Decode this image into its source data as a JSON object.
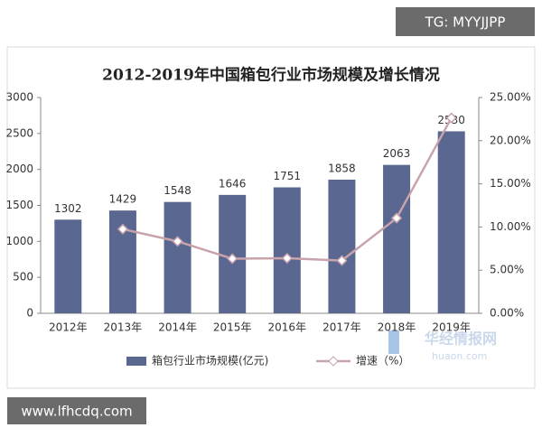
{
  "chart_data": {
    "type": "bar_line",
    "title": "2012-2019年中国箱包行业市场规模及增长情况",
    "categories": [
      "2012年",
      "2013年",
      "2014年",
      "2015年",
      "2016年",
      "2017年",
      "2018年",
      "2019年"
    ],
    "series": [
      {
        "name": "箱包行业市场规模(亿元)",
        "type": "bar",
        "color": "#5a6891",
        "values": [
          1302,
          1429,
          1548,
          1646,
          1751,
          1858,
          2063,
          2530
        ]
      },
      {
        "name": "增速（%）",
        "type": "line",
        "axis": "y2",
        "color": "#c9a3ac",
        "values": [
          null,
          9.75,
          8.33,
          6.33,
          6.38,
          6.11,
          11.03,
          22.64
        ]
      }
    ],
    "ylim": [
      0,
      3000
    ],
    "yticks": [
      0,
      500,
      1000,
      1500,
      2000,
      2500,
      3000
    ],
    "y2lim": [
      0,
      25
    ],
    "y2ticks": [
      {
        "value": 0,
        "label": "0.00%"
      },
      {
        "value": 5,
        "label": "5.00%"
      },
      {
        "value": 10,
        "label": "10.00%"
      },
      {
        "value": 15,
        "label": "15.00%"
      },
      {
        "value": 20,
        "label": "20.00%"
      },
      {
        "value": 25,
        "label": "25.00%"
      }
    ],
    "legend": "bottom"
  },
  "watermarks": {
    "top_right": "TG: MYYJJPP",
    "bottom_left": "www.lfhcdq.com",
    "logo": "华经情报网",
    "logo_url": "huaon.com"
  }
}
